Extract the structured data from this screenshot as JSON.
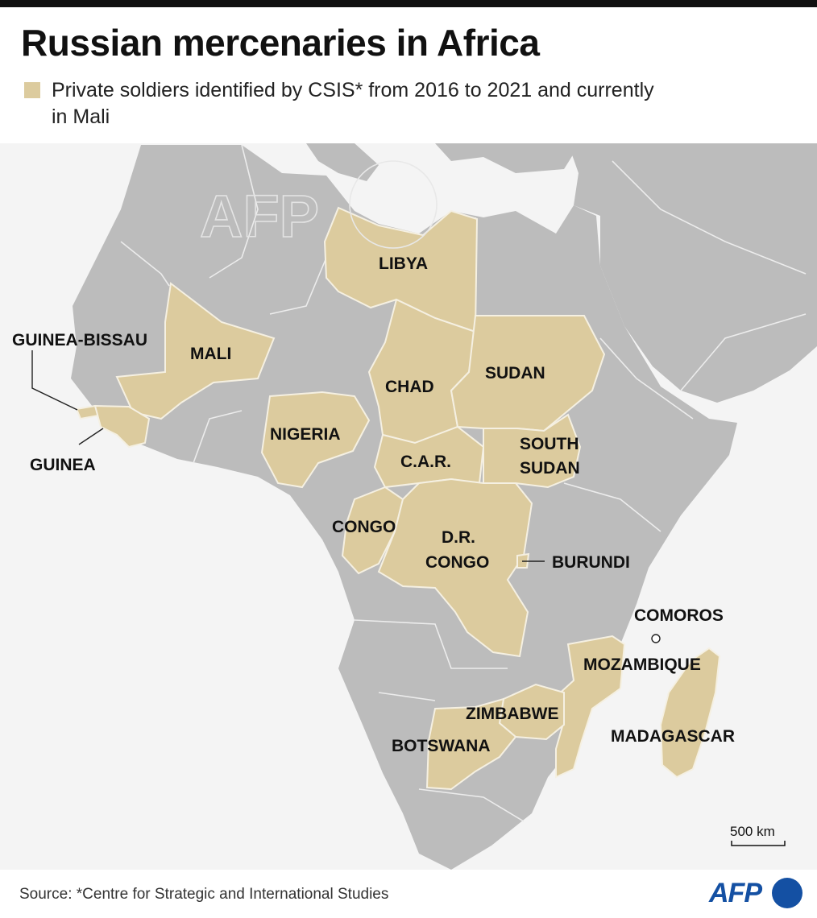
{
  "header": {
    "title": "Russian mercenaries in Africa",
    "legend_text": "Private soldiers identified by CSIS* from 2016 to 2021 and currently in Mali"
  },
  "colors": {
    "highlight": "#dccb9e",
    "land": "#bcbcbc",
    "sea": "#f4f4f4",
    "border": "#ececec",
    "logo_blue": "#1450a3"
  },
  "map": {
    "highlighted_countries": [
      "Libya",
      "Mali",
      "Guinea-Bissau",
      "Guinea",
      "Nigeria",
      "Chad",
      "Sudan",
      "C.A.R.",
      "South Sudan",
      "Congo",
      "D.R. Congo",
      "Burundi",
      "Comoros",
      "Mozambique",
      "Zimbabwe",
      "Botswana",
      "Madagascar"
    ],
    "labels": {
      "libya": "LIBYA",
      "mali": "MALI",
      "guinea_bissau": "GUINEA-BISSAU",
      "guinea": "GUINEA",
      "nigeria": "NIGERIA",
      "chad": "CHAD",
      "sudan": "SUDAN",
      "car": "C.A.R.",
      "south_sudan_1": "SOUTH",
      "south_sudan_2": "SUDAN",
      "congo": "CONGO",
      "drc_1": "D.R.",
      "drc_2": "CONGO",
      "burundi": "BURUNDI",
      "comoros": "COMOROS",
      "mozambique": "MOZAMBIQUE",
      "zimbabwe": "ZIMBABWE",
      "botswana": "BOTSWANA",
      "madagascar": "MADAGASCAR"
    },
    "scale_bar": "500 km",
    "watermark": "AFP"
  },
  "footer": {
    "source": "Source: *Centre for Strategic and International Studies",
    "logo": "AFP"
  }
}
